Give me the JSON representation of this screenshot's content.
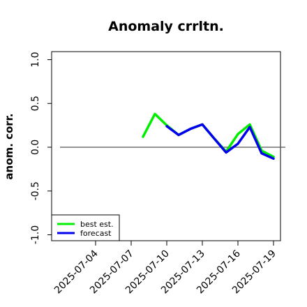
{
  "chart_data": {
    "type": "line",
    "title": "Anomaly crrltn.",
    "xlabel": "",
    "ylabel": "anom. corr.",
    "ylim": [
      -1.0,
      1.0
    ],
    "yticks": [
      "-1.0",
      "-0.5",
      "0.0",
      "0.5",
      "1.0"
    ],
    "xticks": [
      {
        "label": "2025-07-04",
        "day": 4,
        "color": "#000000"
      },
      {
        "label": "2025-07-07",
        "day": 7,
        "color": "#000000"
      },
      {
        "label": "2025-07-10",
        "day": 10,
        "color": "#228b22"
      },
      {
        "label": "2025-07-13",
        "day": 13,
        "color": "#000000"
      },
      {
        "label": "2025-07-16",
        "day": 16,
        "color": "#000000"
      },
      {
        "label": "2025-07-19",
        "day": 19,
        "color": "#000000"
      }
    ],
    "xlim_days": [
      1,
      20
    ],
    "reference_line": 0.0,
    "series": [
      {
        "name": "best est.",
        "color": "#00ee00",
        "x": [
          "2025-07-08",
          "2025-07-09",
          "2025-07-10",
          "2025-07-11",
          "2025-07-12",
          "2025-07-13",
          "2025-07-14",
          "2025-07-15",
          "2025-07-16",
          "2025-07-17",
          "2025-07-18",
          "2025-07-19"
        ],
        "values": [
          0.12,
          0.38,
          0.25,
          0.14,
          0.21,
          0.26,
          0.1,
          -0.05,
          0.15,
          0.26,
          -0.04,
          -0.11
        ]
      },
      {
        "name": "forecast",
        "color": "#0000ee",
        "x": [
          "2025-07-10",
          "2025-07-11",
          "2025-07-12",
          "2025-07-13",
          "2025-07-14",
          "2025-07-15",
          "2025-07-16",
          "2025-07-17",
          "2025-07-18",
          "2025-07-19"
        ],
        "values": [
          0.24,
          0.14,
          0.21,
          0.26,
          0.1,
          -0.06,
          0.04,
          0.23,
          -0.07,
          -0.13
        ]
      }
    ],
    "legend": {
      "position": "bottom-left",
      "entries": [
        "best est.",
        "forecast"
      ]
    },
    "grid": false
  }
}
